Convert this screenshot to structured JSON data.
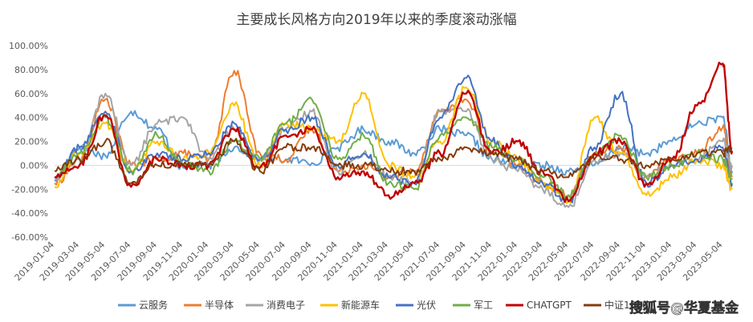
{
  "chart_data": {
    "type": "line",
    "title": "主要成长风格方向2019年以来的季度滚动涨幅",
    "y_ticks": [
      "100.00%",
      "80.00%",
      "60.00%",
      "40.00%",
      "20.00%",
      "0.00%",
      "-20.00%",
      "-40.00%",
      "-60.00%"
    ],
    "ylim": [
      -0.6,
      1.0
    ],
    "x_ticks": [
      "2019-01-04",
      "2019-03-04",
      "2019-05-04",
      "2019-07-04",
      "2019-09-04",
      "2019-11-04",
      "2020-01-04",
      "2020-03-04",
      "2020-05-04",
      "2020-07-04",
      "2020-09-04",
      "2020-11-04",
      "2021-01-04",
      "2021-03-04",
      "2021-05-04",
      "2021-07-04",
      "2021-09-04",
      "2021-11-04",
      "2022-01-04",
      "2022-03-04",
      "2022-05-04",
      "2022-07-04",
      "2022-09-04",
      "2022-11-04",
      "2023-01-04",
      "2023-03-04",
      "2023-05-04"
    ],
    "x_dates": [
      "2019-01-04",
      "2019-03-04",
      "2019-05-04",
      "2019-07-04",
      "2019-09-04",
      "2019-11-04",
      "2020-01-04",
      "2020-03-04",
      "2020-05-04",
      "2020-07-04",
      "2020-09-04",
      "2020-11-04",
      "2021-01-04",
      "2021-03-04",
      "2021-05-04",
      "2021-07-04",
      "2021-09-04",
      "2021-11-04",
      "2022-01-04",
      "2022-03-04",
      "2022-05-04",
      "2022-07-04",
      "2022-09-04",
      "2022-11-04",
      "2023-01-04",
      "2023-03-04",
      "2023-05-04",
      "2023-05-26"
    ],
    "legend_position": "bottom",
    "watermark": "搜狐号@华夏基金",
    "series": [
      {
        "name": "云服务",
        "color": "#5b9bd5",
        "values": [
          -0.12,
          0.15,
          0.08,
          0.45,
          0.3,
          -0.02,
          0.0,
          0.15,
          0.05,
          0.05,
          0.02,
          0.15,
          0.3,
          0.2,
          0.1,
          0.3,
          0.25,
          0.05,
          0.0,
          0.0,
          -0.05,
          0.0,
          0.15,
          0.1,
          0.2,
          0.35,
          0.4,
          -0.05
        ]
      },
      {
        "name": "半导体",
        "color": "#ed7d31",
        "values": [
          -0.15,
          0.05,
          0.55,
          0.0,
          0.05,
          0.1,
          0.05,
          0.79,
          0.1,
          0.05,
          0.3,
          -0.05,
          0.0,
          -0.1,
          -0.05,
          0.45,
          0.55,
          0.1,
          0.0,
          -0.15,
          -0.25,
          0.1,
          0.15,
          -0.1,
          0.05,
          0.1,
          0.32,
          -0.1
        ]
      },
      {
        "name": "消费电子",
        "color": "#a5a5a5",
        "values": [
          -0.1,
          0.05,
          0.6,
          0.0,
          0.35,
          0.4,
          0.05,
          0.3,
          0.05,
          0.3,
          0.45,
          -0.05,
          0.1,
          -0.1,
          -0.15,
          0.45,
          0.45,
          0.05,
          -0.05,
          -0.2,
          -0.35,
          0.05,
          0.1,
          -0.1,
          0.0,
          0.05,
          0.2,
          0.0
        ]
      },
      {
        "name": "新能源车",
        "color": "#ffc000",
        "values": [
          -0.18,
          0.1,
          0.35,
          -0.05,
          0.2,
          0.05,
          0.1,
          0.5,
          0.0,
          0.35,
          0.3,
          0.2,
          0.6,
          0.0,
          -0.1,
          0.2,
          0.65,
          0.2,
          0.05,
          -0.15,
          -0.3,
          0.4,
          0.1,
          -0.25,
          -0.1,
          0.05,
          0.0,
          -0.2
        ]
      },
      {
        "name": "光伏",
        "color": "#4472c4",
        "values": [
          -0.1,
          0.15,
          0.45,
          -0.05,
          0.1,
          0.05,
          0.1,
          0.35,
          0.05,
          0.3,
          0.4,
          0.0,
          0.1,
          -0.1,
          -0.15,
          0.4,
          0.73,
          0.2,
          0.0,
          -0.15,
          -0.3,
          0.15,
          0.6,
          -0.15,
          0.0,
          0.05,
          0.15,
          -0.15
        ]
      },
      {
        "name": "军工",
        "color": "#70ad47",
        "values": [
          -0.1,
          0.1,
          0.4,
          -0.05,
          0.25,
          0.0,
          -0.05,
          0.2,
          0.05,
          0.35,
          0.55,
          0.05,
          0.25,
          -0.15,
          -0.2,
          0.25,
          0.4,
          0.15,
          0.05,
          -0.1,
          -0.25,
          0.1,
          0.25,
          -0.1,
          0.0,
          0.1,
          0.05,
          -0.12
        ]
      },
      {
        "name": "CHATGPT",
        "color": "#c00000",
        "values": [
          -0.1,
          0.0,
          0.42,
          -0.18,
          0.05,
          0.0,
          0.0,
          0.3,
          -0.02,
          0.25,
          0.3,
          -0.1,
          -0.05,
          -0.25,
          -0.15,
          0.1,
          0.6,
          0.1,
          0.2,
          -0.05,
          -0.3,
          0.1,
          0.2,
          -0.15,
          0.05,
          0.5,
          0.85,
          0.12
        ]
      },
      {
        "name": "中证1000",
        "color": "#843c0c",
        "values": [
          -0.05,
          0.05,
          0.2,
          -0.15,
          0.0,
          0.0,
          0.0,
          0.2,
          -0.05,
          0.15,
          0.15,
          0.0,
          0.0,
          -0.05,
          -0.05,
          0.05,
          0.15,
          0.1,
          0.05,
          -0.05,
          -0.1,
          0.05,
          0.05,
          0.0,
          0.05,
          0.1,
          0.1,
          0.14
        ]
      }
    ]
  }
}
